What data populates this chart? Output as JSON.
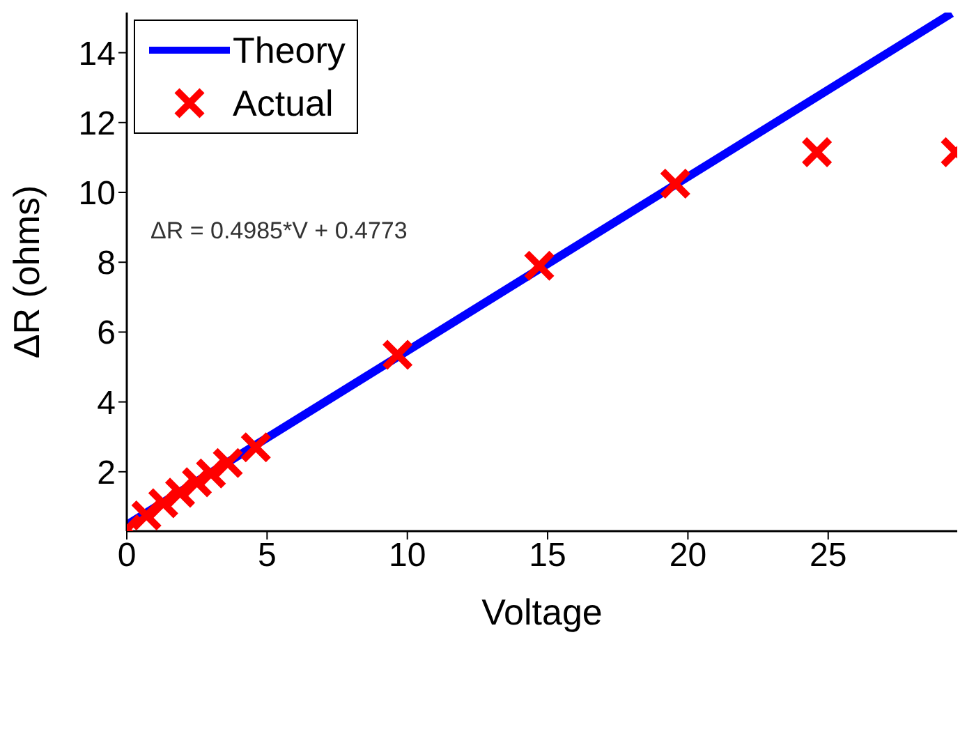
{
  "chart_data": {
    "type": "scatter",
    "xlabel": "Voltage",
    "ylabel": "ΔR (ohms)",
    "xlim": [
      0,
      29.6
    ],
    "ylim": [
      0.3,
      15.15
    ],
    "xticks": [
      0,
      5,
      10,
      15,
      20,
      25
    ],
    "yticks": [
      2,
      4,
      6,
      8,
      10,
      12,
      14
    ],
    "grid": false,
    "legend": "top left",
    "annotations": [
      "ΔR = 0.4985*V + 0.4773"
    ],
    "series": [
      {
        "name": "Theory",
        "type": "line",
        "color": "#0000ff",
        "marker": "none",
        "line_style": "solid",
        "x": [
          0,
          29.4
        ],
        "values": [
          0.48,
          15.13
        ]
      },
      {
        "name": "Actual",
        "color": "#ff0000",
        "marker": "cross",
        "x": [
          0,
          0.7,
          1.3,
          1.9,
          2.5,
          3.0,
          3.6,
          4.6,
          9.65,
          14.7,
          19.55,
          24.6,
          29.55
        ],
        "values": [
          0.35,
          0.75,
          1.1,
          1.4,
          1.7,
          1.95,
          2.25,
          2.7,
          5.35,
          7.9,
          10.25,
          11.15,
          11.15
        ]
      }
    ]
  }
}
